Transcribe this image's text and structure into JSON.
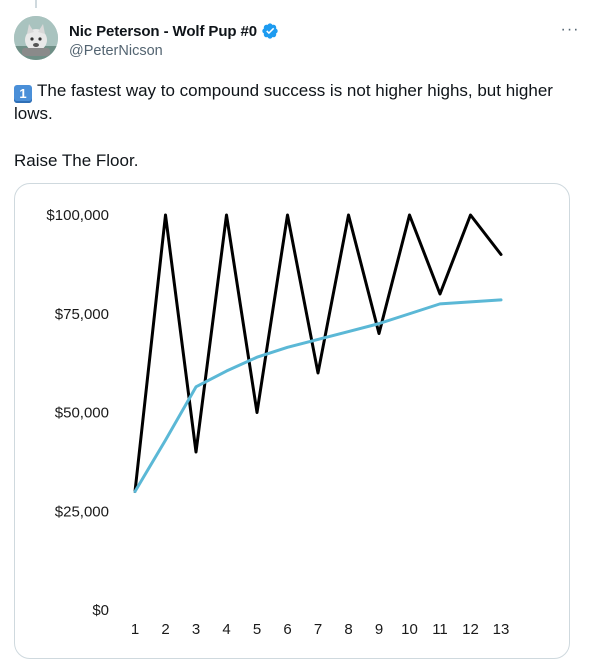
{
  "author": {
    "display_name": "Nic Peterson - Wolf Pup #0",
    "handle": "@PeterNicson",
    "verified": true
  },
  "icons": {
    "avatar": "wolf-avatar",
    "verified": "verified-badge-icon",
    "more": "more-icon",
    "keycap": "keycap-one-emoji"
  },
  "colors": {
    "verified_badge": "#1d9bf0",
    "black_series": "#000000",
    "blue_series": "#5bb8d6",
    "keycap": "#4a8fd8"
  },
  "more_button": {
    "label": "···"
  },
  "tweet": {
    "keycap_emoji": "1",
    "line1": "The fastest way to compound success is not higher highs, but higher lows.",
    "line2": "Raise The Floor."
  },
  "chart_data": {
    "type": "line",
    "title": "",
    "xlabel": "",
    "ylabel": "",
    "x": [
      1,
      2,
      3,
      4,
      5,
      6,
      7,
      8,
      9,
      10,
      11,
      12,
      13
    ],
    "ylim": [
      0,
      100000
    ],
    "yticks": [
      "$0",
      "$25,000",
      "$50,000",
      "$75,000",
      "$100,000"
    ],
    "ytick_values": [
      0,
      25000,
      50000,
      75000,
      100000
    ],
    "grid": false,
    "legend": "none",
    "series": [
      {
        "color": "#000000",
        "values": [
          30000,
          100000,
          40000,
          100000,
          50000,
          100000,
          60000,
          100000,
          70000,
          100000,
          80000,
          100000,
          90000
        ]
      },
      {
        "color": "#5bb8d6",
        "values": [
          30000,
          43000,
          56500,
          60500,
          64000,
          66500,
          68500,
          70500,
          72500,
          75000,
          77500,
          78000,
          78500
        ]
      }
    ]
  }
}
